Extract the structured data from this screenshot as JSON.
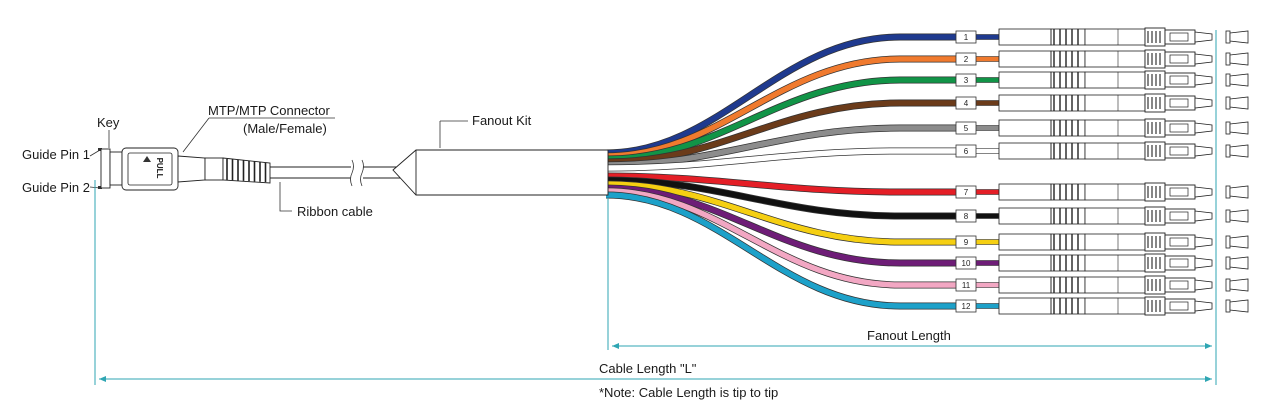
{
  "labels": {
    "key": "Key",
    "guide_pin_1": "Guide Pin 1",
    "guide_pin_2": "Guide Pin 2",
    "connector_line1": "MTP/MTP Connector",
    "connector_line2": "(Male/Female)",
    "ribbon_cable": "Ribbon cable",
    "fanout_kit": "Fanout Kit",
    "fanout_length": "Fanout Length",
    "cable_length": "Cable Length \"L\"",
    "note": "*Note: Cable Length is tip to tip",
    "connector_stamp": "PULL"
  },
  "dimension_color": "#2fa6b3",
  "fibers": [
    {
      "number": "1",
      "color": "#1f3a8f"
    },
    {
      "number": "2",
      "color": "#f07a2e"
    },
    {
      "number": "3",
      "color": "#119447"
    },
    {
      "number": "4",
      "color": "#6b3b1a"
    },
    {
      "number": "5",
      "color": "#8c8c8c"
    },
    {
      "number": "6",
      "color": "#ffffff"
    },
    {
      "number": "7",
      "color": "#e41e26"
    },
    {
      "number": "8",
      "color": "#111111"
    },
    {
      "number": "9",
      "color": "#f5cf12"
    },
    {
      "number": "10",
      "color": "#6e1d77"
    },
    {
      "number": "11",
      "color": "#f2a7c3"
    },
    {
      "number": "12",
      "color": "#1da1c9"
    }
  ]
}
